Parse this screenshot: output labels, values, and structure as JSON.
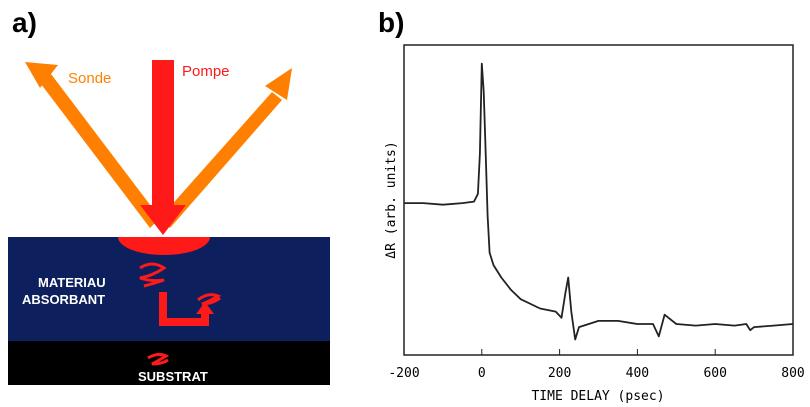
{
  "panel_a": {
    "label": "a)",
    "probe": "Sonde",
    "pump": "Pompe",
    "material_line1": "MATERIAU",
    "material_line2": "ABSORBANT",
    "substrate": "SUBSTRAT"
  },
  "chart_data": {
    "type": "line",
    "panel_label": "b)",
    "xlabel": "TIME DELAY (psec)",
    "ylabel": "ΔR (arb. units)",
    "x": [
      -200,
      -150,
      -100,
      -50,
      -20,
      -10,
      -5,
      0,
      5,
      10,
      15,
      20,
      30,
      50,
      75,
      100,
      150,
      190,
      205,
      215,
      222,
      230,
      240,
      250,
      300,
      350,
      400,
      440,
      455,
      470,
      480,
      500,
      550,
      600,
      650,
      680,
      690,
      700,
      750,
      800
    ],
    "values": [
      0.49,
      0.49,
      0.485,
      0.49,
      0.495,
      0.52,
      0.65,
      0.94,
      0.85,
      0.65,
      0.45,
      0.33,
      0.29,
      0.25,
      0.21,
      0.18,
      0.15,
      0.14,
      0.12,
      0.2,
      0.25,
      0.14,
      0.05,
      0.09,
      0.11,
      0.11,
      0.1,
      0.1,
      0.06,
      0.13,
      0.12,
      0.1,
      0.095,
      0.1,
      0.095,
      0.1,
      0.08,
      0.09,
      0.095,
      0.1
    ],
    "color": "#222222",
    "xlim": [
      -200,
      800
    ],
    "xticks": [
      -200,
      0,
      200,
      400,
      600,
      800
    ],
    "ylim": [
      0,
      1
    ]
  }
}
